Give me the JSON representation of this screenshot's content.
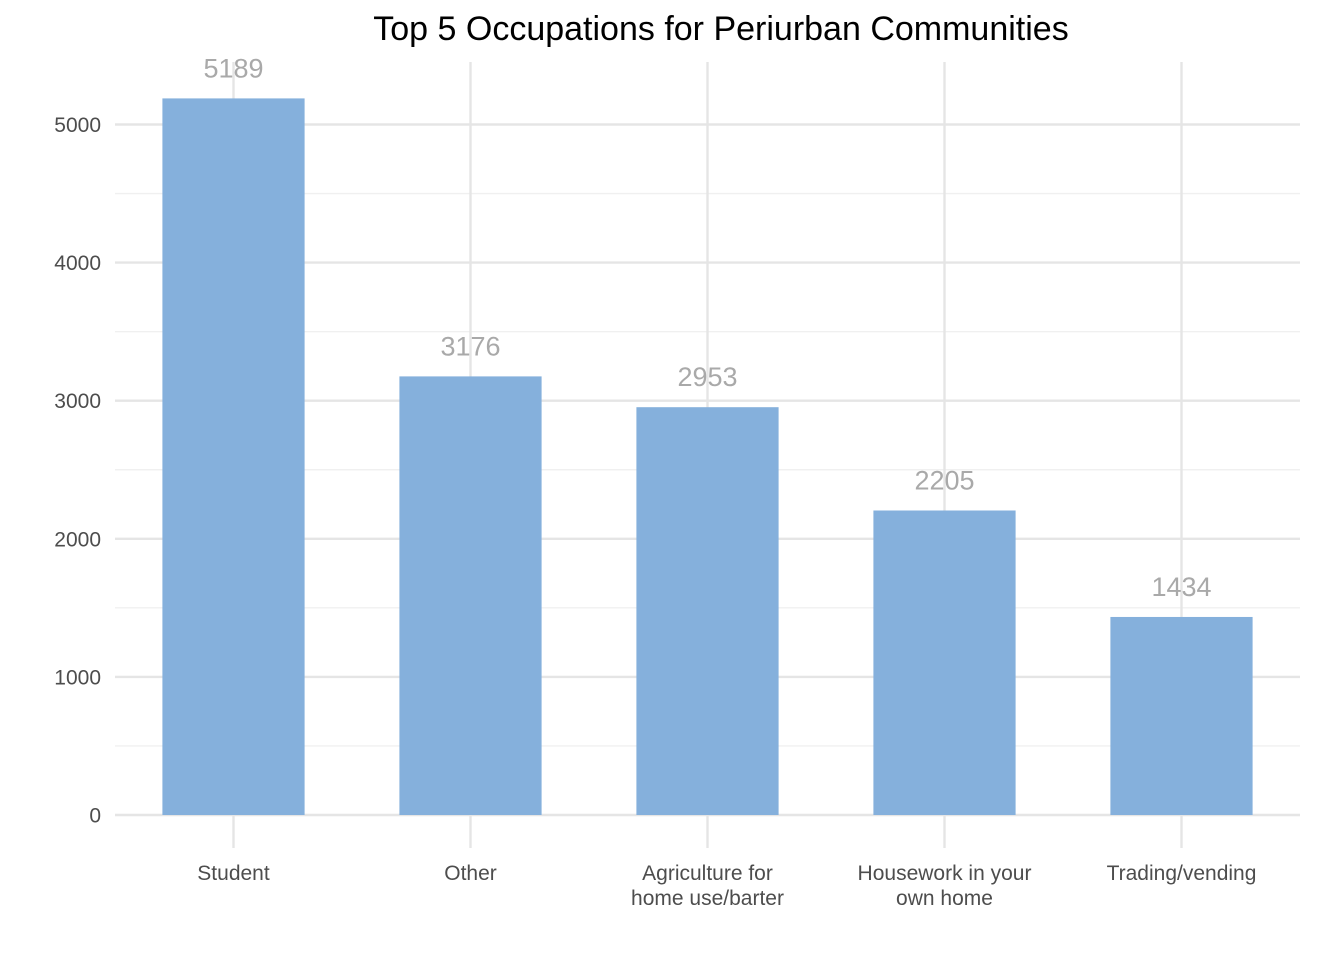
{
  "chart_data": {
    "type": "bar",
    "title": "Top 5 Occupations for Periurban Communities",
    "xlabel": "",
    "ylabel": "",
    "categories": [
      [
        "Student"
      ],
      [
        "Other"
      ],
      [
        "Agriculture for",
        "home use/barter"
      ],
      [
        "Housework in your",
        "own home"
      ],
      [
        "Trading/vending"
      ]
    ],
    "values": [
      5189,
      3176,
      2953,
      2205,
      1434
    ],
    "data_labels": [
      "5189",
      "3176",
      "2953",
      "2205",
      "1434"
    ],
    "ylim": [
      0,
      5450
    ],
    "yticks": [
      0,
      1000,
      2000,
      3000,
      4000,
      5000
    ],
    "ytick_labels": [
      "0",
      "1000",
      "2000",
      "3000",
      "4000",
      "5000"
    ],
    "grid": true,
    "legend": "none",
    "bar_color": "#85b0dc",
    "label_color": "#a9a9a9"
  }
}
